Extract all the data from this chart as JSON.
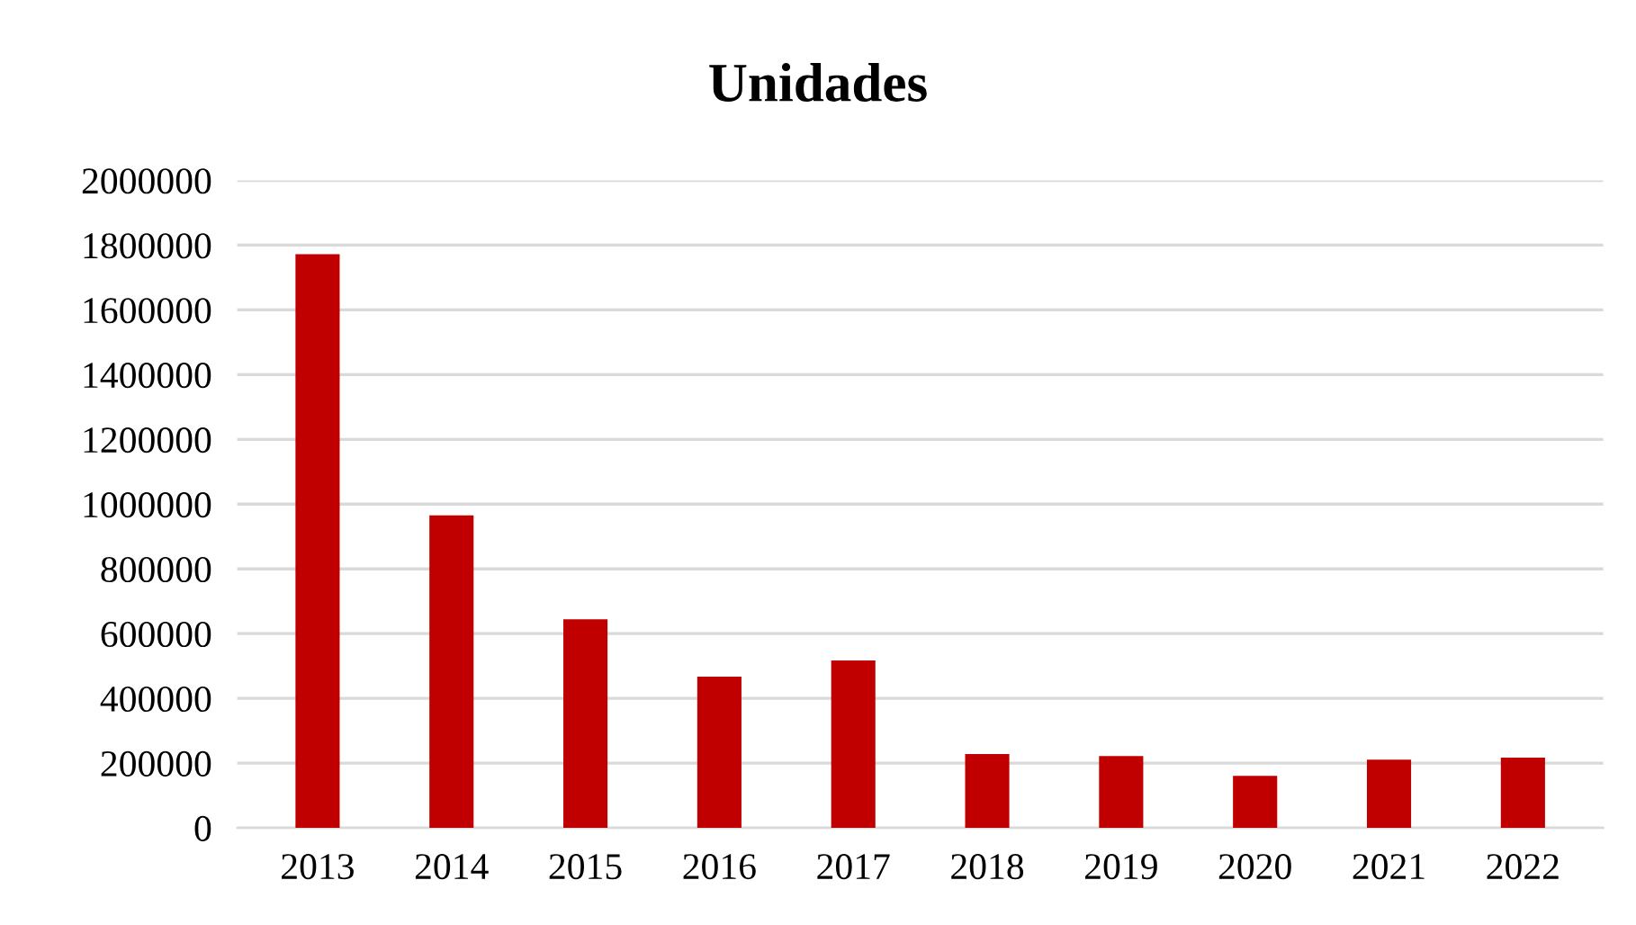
{
  "chart_data": {
    "type": "bar",
    "title": "Unidades",
    "categories": [
      "2013",
      "2014",
      "2015",
      "2016",
      "2017",
      "2018",
      "2019",
      "2020",
      "2021",
      "2022"
    ],
    "values": [
      1772000,
      965000,
      644000,
      467000,
      517000,
      228000,
      222000,
      161000,
      211000,
      217000
    ],
    "color": "#c00000",
    "ylim": [
      0,
      2000000
    ],
    "yticks": [
      0,
      200000,
      400000,
      600000,
      800000,
      1000000,
      1200000,
      1400000,
      1600000,
      1800000,
      2000000
    ],
    "grid": "y"
  }
}
